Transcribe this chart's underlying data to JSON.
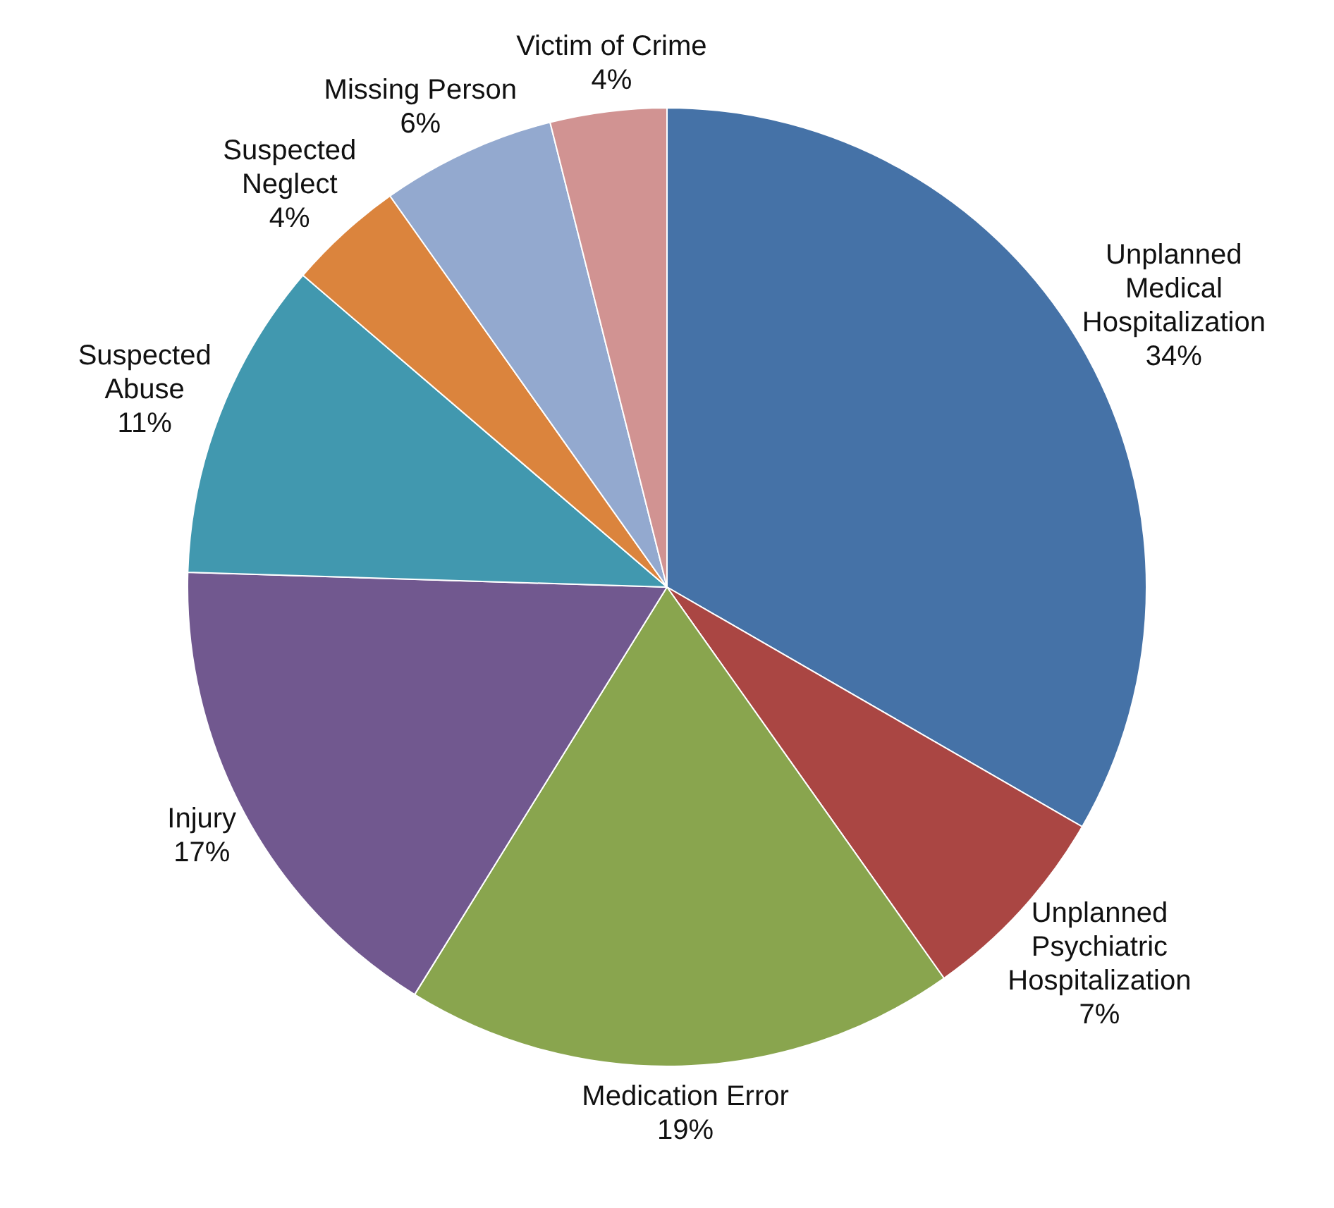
{
  "chart_data": {
    "type": "pie",
    "categories": [
      "Unplanned Medical Hospitalization",
      "Unplanned Psychiatric Hospitalization",
      "Medication Error",
      "Injury",
      "Suspected Abuse",
      "Suspected Neglect",
      "Missing Person",
      "Victim of Crime"
    ],
    "values": [
      34,
      7,
      19,
      17,
      11,
      4,
      6,
      4
    ],
    "value_labels": [
      "34%",
      "7%",
      "19%",
      "17%",
      "11%",
      "4%",
      "6%",
      "4%"
    ],
    "colors": [
      "#4572a7",
      "#aa4643",
      "#89a54e",
      "#71588f",
      "#4198af",
      "#db843d",
      "#93a9cf",
      "#d19392"
    ],
    "legend": false
  }
}
